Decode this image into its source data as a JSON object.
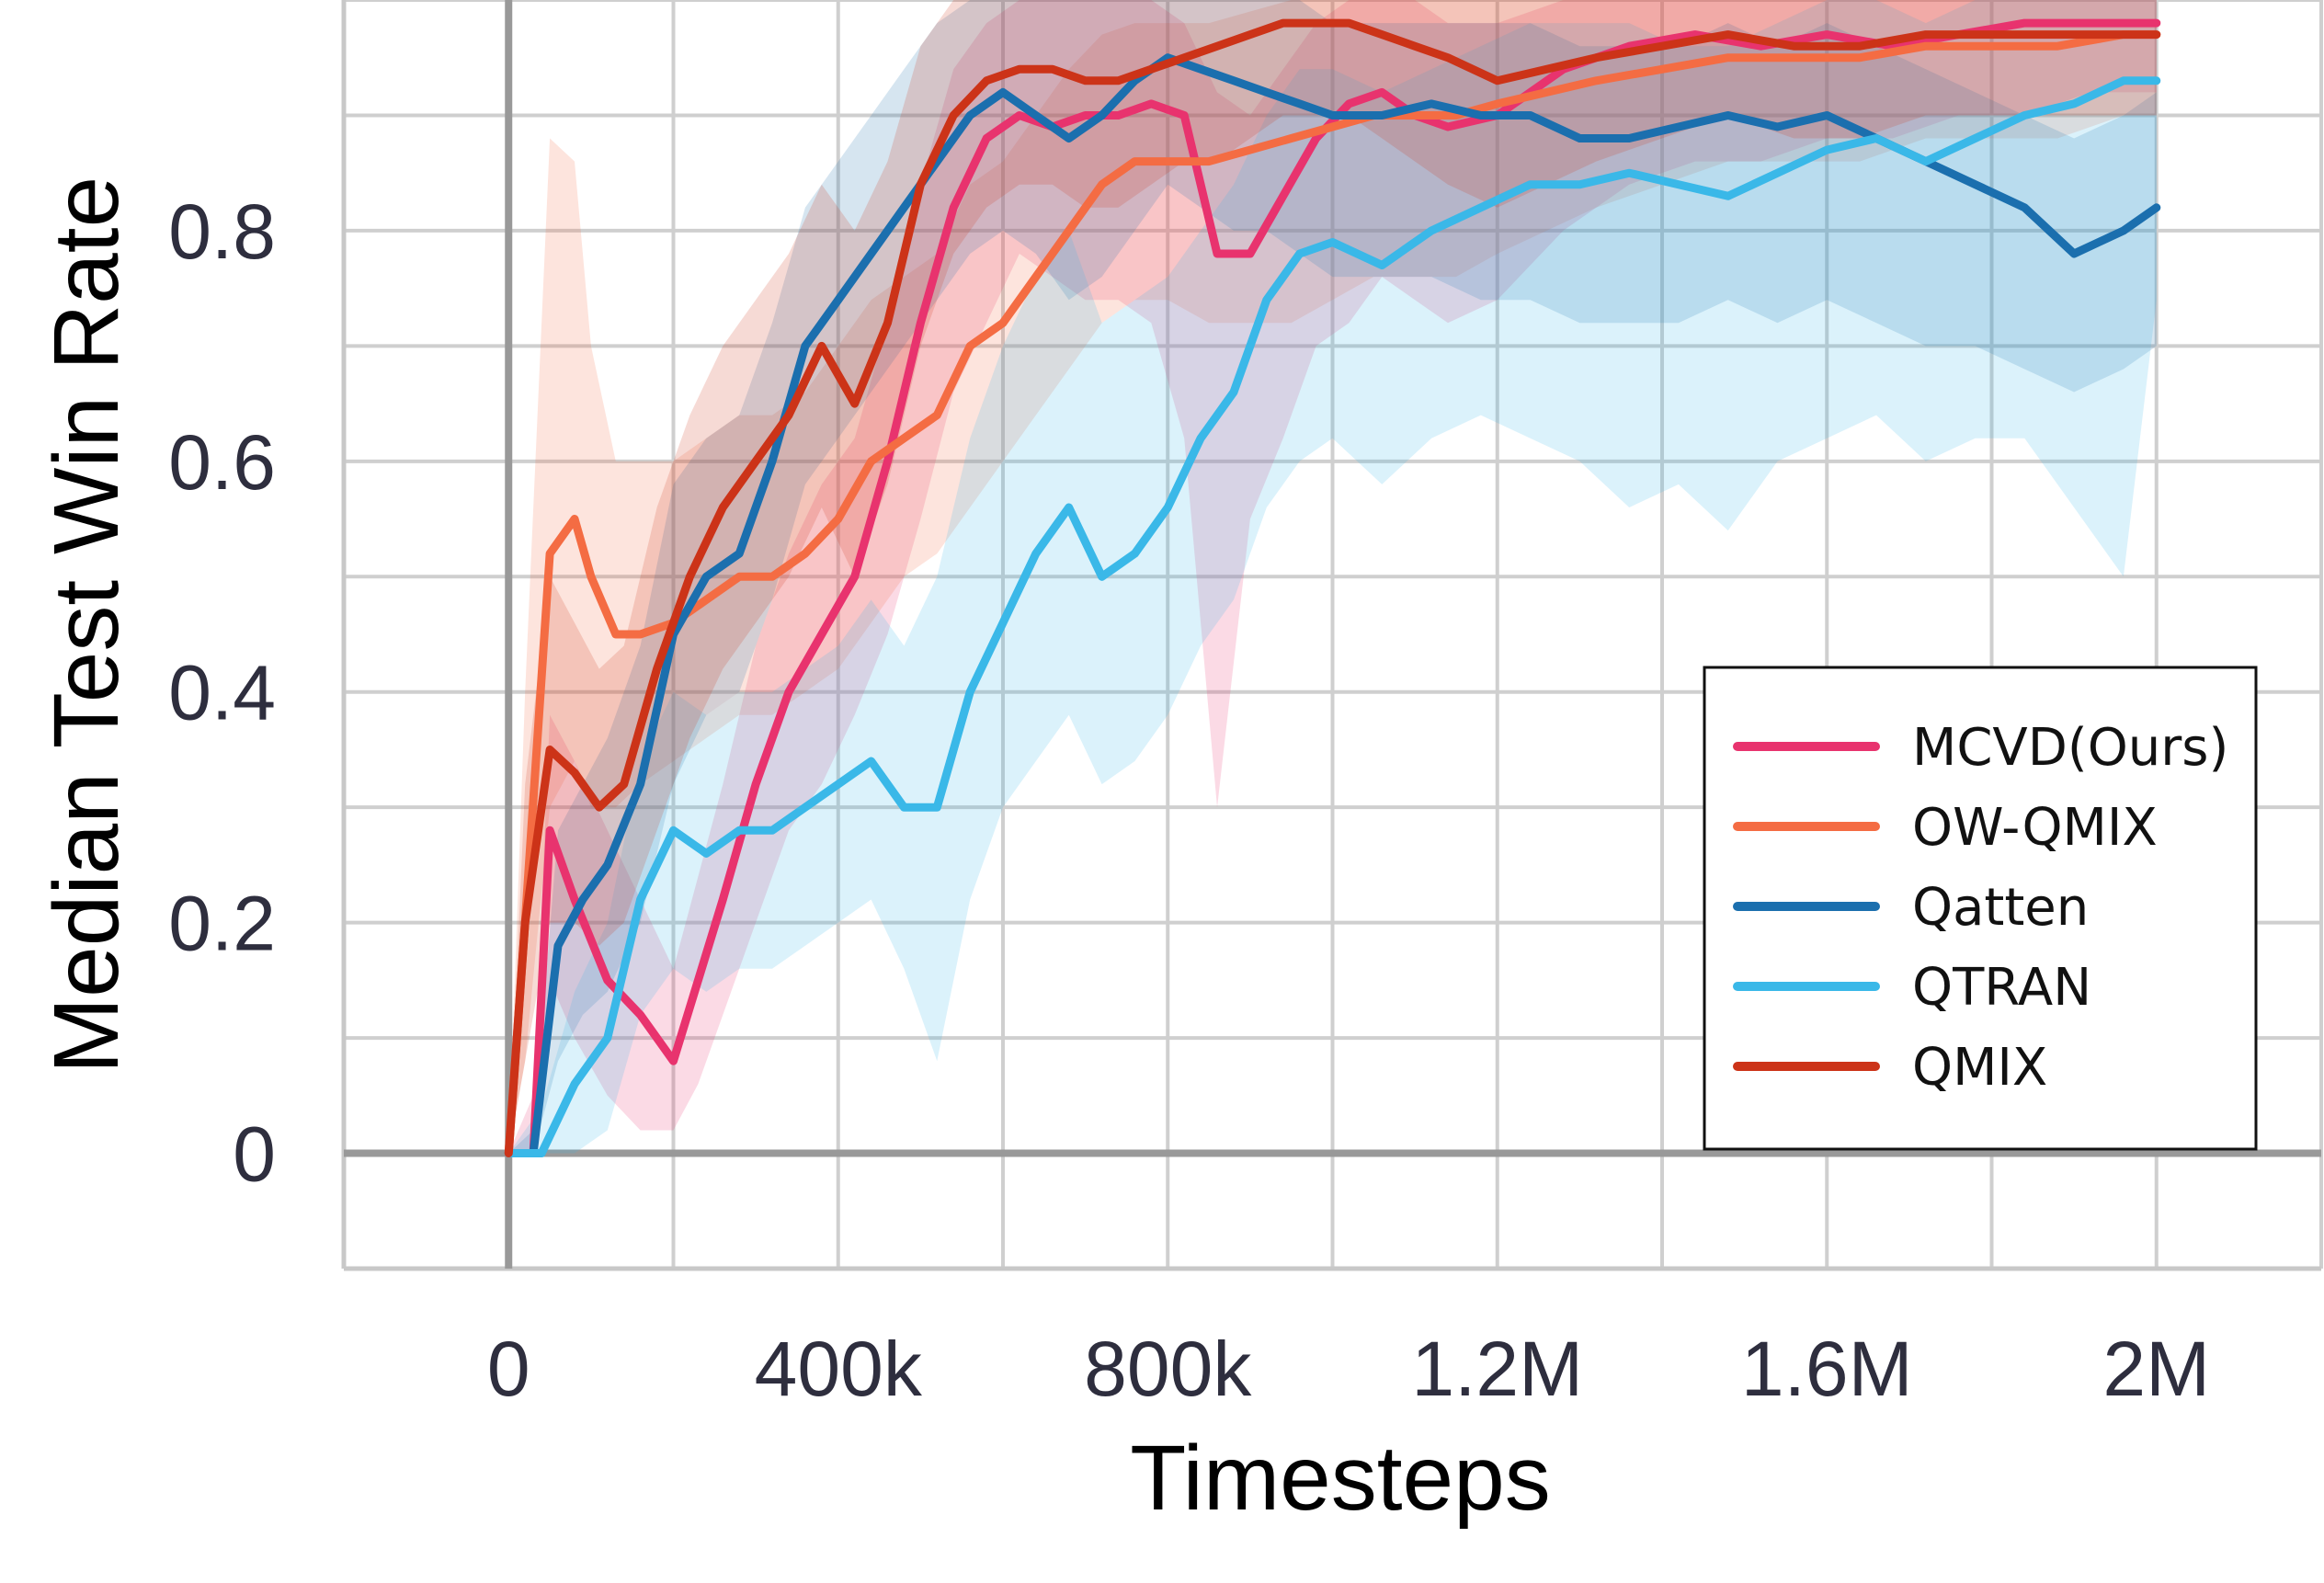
{
  "chart_data": {
    "type": "line",
    "xlabel": "Timesteps",
    "ylabel": "Median Test Win Rate",
    "xlim": [
      -200000,
      2200000
    ],
    "ylim": [
      -0.1,
      1.0
    ],
    "x_ticks": [
      0,
      400000,
      800000,
      1200000,
      1600000,
      2000000
    ],
    "x_tick_labels": [
      "0",
      "400k",
      "800k",
      "1.2M",
      "1.6M",
      "2M"
    ],
    "y_ticks": [
      0,
      0.2,
      0.4,
      0.6,
      0.8
    ],
    "y_tick_labels": [
      "0",
      "0.2",
      "0.4",
      "0.6",
      "0.8"
    ],
    "grid": true,
    "legend_position": "lower-right",
    "shaded_band": "min-max over runs",
    "series": [
      {
        "name": "MCVD(Ours)",
        "color": "#e8336e",
        "x": [
          0,
          30000,
          50000,
          80000,
          120000,
          160000,
          200000,
          230000,
          260000,
          300000,
          340000,
          380000,
          420000,
          460000,
          500000,
          540000,
          580000,
          620000,
          660000,
          700000,
          740000,
          780000,
          820000,
          860000,
          900000,
          940000,
          980000,
          1020000,
          1060000,
          1100000,
          1140000,
          1200000,
          1280000,
          1360000,
          1440000,
          1520000,
          1600000,
          1680000,
          1760000,
          1840000,
          1920000,
          2000000
        ],
        "y": [
          0,
          0.0,
          0.28,
          0.22,
          0.15,
          0.12,
          0.08,
          0.15,
          0.22,
          0.32,
          0.4,
          0.45,
          0.5,
          0.6,
          0.72,
          0.82,
          0.88,
          0.9,
          0.89,
          0.9,
          0.9,
          0.91,
          0.9,
          0.78,
          0.78,
          0.83,
          0.88,
          0.91,
          0.92,
          0.9,
          0.89,
          0.9,
          0.94,
          0.96,
          0.97,
          0.96,
          0.97,
          0.96,
          0.97,
          0.98,
          0.98,
          0.98
        ],
        "min": [
          0,
          0.0,
          0.15,
          0.1,
          0.05,
          0.02,
          0.02,
          0.06,
          0.12,
          0.2,
          0.28,
          0.32,
          0.38,
          0.45,
          0.55,
          0.66,
          0.72,
          0.78,
          0.76,
          0.74,
          0.74,
          0.72,
          0.62,
          0.3,
          0.55,
          0.62,
          0.7,
          0.72,
          0.76,
          0.74,
          0.72,
          0.74,
          0.8,
          0.84,
          0.86,
          0.86,
          0.88,
          0.88,
          0.9,
          0.9,
          0.92,
          0.92
        ],
        "max": [
          0,
          0.05,
          0.38,
          0.34,
          0.28,
          0.22,
          0.16,
          0.24,
          0.32,
          0.44,
          0.52,
          0.58,
          0.62,
          0.72,
          0.84,
          0.94,
          0.98,
          1.0,
          1.0,
          1.0,
          1.0,
          1.0,
          0.98,
          0.92,
          0.9,
          0.94,
          0.98,
          1.0,
          1.0,
          1.0,
          0.98,
          0.98,
          1.0,
          1.0,
          1.0,
          1.0,
          1.0,
          1.0,
          1.0,
          1.0,
          1.0,
          1.0
        ]
      },
      {
        "name": "OW-QMIX",
        "color": "#f46c43",
        "x": [
          0,
          20000,
          50000,
          80000,
          100000,
          130000,
          160000,
          200000,
          240000,
          280000,
          320000,
          360000,
          400000,
          440000,
          480000,
          520000,
          560000,
          600000,
          640000,
          680000,
          720000,
          760000,
          800000,
          850000,
          900000,
          950000,
          1000000,
          1050000,
          1100000,
          1150000,
          1200000,
          1260000,
          1320000,
          1400000,
          1480000,
          1560000,
          1640000,
          1720000,
          1800000,
          1880000,
          1960000,
          2000000
        ],
        "y": [
          0,
          0.2,
          0.52,
          0.55,
          0.5,
          0.45,
          0.45,
          0.46,
          0.48,
          0.5,
          0.5,
          0.52,
          0.55,
          0.6,
          0.62,
          0.64,
          0.7,
          0.72,
          0.76,
          0.8,
          0.84,
          0.86,
          0.86,
          0.86,
          0.87,
          0.88,
          0.89,
          0.9,
          0.9,
          0.9,
          0.91,
          0.92,
          0.93,
          0.94,
          0.95,
          0.95,
          0.95,
          0.96,
          0.96,
          0.96,
          0.97,
          0.97
        ],
        "min": [
          0,
          0.08,
          0.3,
          0.34,
          0.3,
          0.3,
          0.32,
          0.34,
          0.36,
          0.38,
          0.38,
          0.4,
          0.42,
          0.46,
          0.5,
          0.52,
          0.56,
          0.6,
          0.64,
          0.68,
          0.72,
          0.74,
          0.74,
          0.72,
          0.72,
          0.72,
          0.74,
          0.76,
          0.76,
          0.76,
          0.78,
          0.8,
          0.82,
          0.84,
          0.86,
          0.86,
          0.86,
          0.88,
          0.88,
          0.88,
          0.9,
          0.9
        ],
        "max": [
          0,
          0.4,
          0.88,
          0.86,
          0.7,
          0.6,
          0.6,
          0.6,
          0.62,
          0.64,
          0.64,
          0.66,
          0.7,
          0.74,
          0.76,
          0.78,
          0.84,
          0.86,
          0.9,
          0.94,
          0.97,
          0.98,
          0.98,
          0.98,
          0.99,
          1.0,
          1.0,
          1.0,
          1.0,
          1.0,
          1.0,
          1.0,
          1.0,
          1.0,
          1.0,
          1.0,
          1.0,
          1.0,
          1.0,
          1.0,
          1.0,
          1.0
        ]
      },
      {
        "name": "Qatten",
        "color": "#1b6fae",
        "x": [
          0,
          30000,
          60000,
          90000,
          120000,
          160000,
          200000,
          240000,
          280000,
          320000,
          360000,
          400000,
          440000,
          480000,
          520000,
          560000,
          600000,
          640000,
          680000,
          720000,
          760000,
          800000,
          840000,
          880000,
          920000,
          960000,
          1000000,
          1060000,
          1120000,
          1180000,
          1240000,
          1300000,
          1360000,
          1420000,
          1480000,
          1540000,
          1600000,
          1660000,
          1720000,
          1780000,
          1840000,
          1900000,
          1960000,
          2000000
        ],
        "y": [
          0,
          0.0,
          0.18,
          0.22,
          0.25,
          0.32,
          0.45,
          0.5,
          0.52,
          0.6,
          0.7,
          0.74,
          0.78,
          0.82,
          0.86,
          0.9,
          0.92,
          0.9,
          0.88,
          0.9,
          0.93,
          0.95,
          0.94,
          0.93,
          0.92,
          0.91,
          0.9,
          0.9,
          0.91,
          0.9,
          0.9,
          0.88,
          0.88,
          0.89,
          0.9,
          0.89,
          0.9,
          0.88,
          0.86,
          0.84,
          0.82,
          0.78,
          0.8,
          0.82
        ],
        "min": [
          0,
          0.0,
          0.08,
          0.12,
          0.14,
          0.2,
          0.32,
          0.38,
          0.4,
          0.48,
          0.58,
          0.62,
          0.66,
          0.7,
          0.74,
          0.78,
          0.8,
          0.78,
          0.74,
          0.76,
          0.8,
          0.84,
          0.82,
          0.8,
          0.8,
          0.78,
          0.76,
          0.76,
          0.76,
          0.74,
          0.74,
          0.72,
          0.72,
          0.72,
          0.74,
          0.72,
          0.74,
          0.72,
          0.7,
          0.7,
          0.68,
          0.66,
          0.68,
          0.7
        ],
        "max": [
          0,
          0.02,
          0.28,
          0.32,
          0.36,
          0.44,
          0.58,
          0.62,
          0.64,
          0.72,
          0.82,
          0.86,
          0.9,
          0.94,
          0.98,
          1.0,
          1.0,
          1.0,
          1.0,
          1.0,
          1.0,
          1.0,
          1.0,
          1.0,
          1.0,
          1.0,
          0.98,
          0.98,
          0.98,
          0.98,
          0.98,
          0.96,
          0.96,
          0.96,
          0.98,
          0.96,
          0.98,
          0.96,
          0.94,
          0.92,
          0.9,
          0.88,
          0.9,
          0.92
        ]
      },
      {
        "name": "QTRAN",
        "color": "#3ab8e8",
        "x": [
          0,
          40000,
          80000,
          120000,
          160000,
          200000,
          240000,
          280000,
          320000,
          360000,
          400000,
          440000,
          480000,
          520000,
          560000,
          600000,
          640000,
          680000,
          720000,
          760000,
          800000,
          840000,
          880000,
          920000,
          960000,
          1000000,
          1060000,
          1120000,
          1180000,
          1240000,
          1300000,
          1360000,
          1420000,
          1480000,
          1540000,
          1600000,
          1660000,
          1720000,
          1780000,
          1840000,
          1900000,
          1960000,
          2000000
        ],
        "y": [
          0,
          0.0,
          0.06,
          0.1,
          0.22,
          0.28,
          0.26,
          0.28,
          0.28,
          0.3,
          0.32,
          0.34,
          0.3,
          0.3,
          0.4,
          0.46,
          0.52,
          0.56,
          0.5,
          0.52,
          0.56,
          0.62,
          0.66,
          0.74,
          0.78,
          0.79,
          0.77,
          0.8,
          0.82,
          0.84,
          0.84,
          0.85,
          0.84,
          0.83,
          0.85,
          0.87,
          0.88,
          0.86,
          0.88,
          0.9,
          0.91,
          0.93,
          0.93
        ],
        "min": [
          0,
          0.0,
          0.0,
          0.02,
          0.12,
          0.16,
          0.14,
          0.16,
          0.16,
          0.18,
          0.2,
          0.22,
          0.16,
          0.08,
          0.22,
          0.3,
          0.34,
          0.38,
          0.32,
          0.34,
          0.38,
          0.44,
          0.48,
          0.56,
          0.6,
          0.62,
          0.58,
          0.62,
          0.64,
          0.62,
          0.6,
          0.56,
          0.58,
          0.54,
          0.6,
          0.62,
          0.64,
          0.6,
          0.62,
          0.62,
          0.56,
          0.5,
          0.74
        ],
        "max": [
          0,
          0.04,
          0.14,
          0.2,
          0.34,
          0.4,
          0.38,
          0.4,
          0.4,
          0.42,
          0.44,
          0.48,
          0.44,
          0.5,
          0.62,
          0.7,
          0.76,
          0.8,
          0.72,
          0.74,
          0.76,
          0.8,
          0.84,
          0.9,
          0.94,
          0.94,
          0.92,
          0.94,
          0.96,
          0.98,
          0.98,
          0.98,
          0.96,
          0.96,
          0.98,
          1.0,
          1.0,
          0.98,
          1.0,
          1.0,
          1.0,
          1.0,
          1.0
        ]
      },
      {
        "name": "QMIX",
        "color": "#cc3318",
        "x": [
          0,
          20000,
          50000,
          80000,
          110000,
          140000,
          180000,
          220000,
          260000,
          300000,
          340000,
          380000,
          420000,
          460000,
          500000,
          540000,
          580000,
          620000,
          660000,
          700000,
          740000,
          780000,
          820000,
          860000,
          900000,
          940000,
          980000,
          1020000,
          1060000,
          1100000,
          1140000,
          1200000,
          1260000,
          1320000,
          1400000,
          1480000,
          1560000,
          1640000,
          1720000,
          1800000,
          1880000,
          1960000,
          2000000
        ],
        "y": [
          0,
          0.2,
          0.35,
          0.33,
          0.3,
          0.32,
          0.42,
          0.5,
          0.56,
          0.6,
          0.64,
          0.7,
          0.65,
          0.72,
          0.84,
          0.9,
          0.93,
          0.94,
          0.94,
          0.93,
          0.93,
          0.94,
          0.95,
          0.96,
          0.97,
          0.98,
          0.98,
          0.98,
          0.97,
          0.96,
          0.95,
          0.93,
          0.94,
          0.95,
          0.96,
          0.97,
          0.96,
          0.96,
          0.97,
          0.97,
          0.97,
          0.97,
          0.97
        ],
        "min": [
          0,
          0.08,
          0.2,
          0.2,
          0.18,
          0.2,
          0.28,
          0.36,
          0.42,
          0.46,
          0.5,
          0.56,
          0.5,
          0.58,
          0.7,
          0.78,
          0.82,
          0.84,
          0.84,
          0.82,
          0.82,
          0.84,
          0.86,
          0.86,
          0.88,
          0.9,
          0.9,
          0.9,
          0.88,
          0.86,
          0.84,
          0.82,
          0.84,
          0.86,
          0.88,
          0.9,
          0.88,
          0.88,
          0.9,
          0.9,
          0.9,
          0.9,
          0.9
        ],
        "max": [
          0,
          0.32,
          0.5,
          0.46,
          0.42,
          0.44,
          0.56,
          0.64,
          0.7,
          0.74,
          0.78,
          0.84,
          0.8,
          0.86,
          0.96,
          1.0,
          1.0,
          1.0,
          1.0,
          1.0,
          1.0,
          1.0,
          1.0,
          1.0,
          1.0,
          1.0,
          1.0,
          1.0,
          1.0,
          1.0,
          1.0,
          1.0,
          1.0,
          1.0,
          1.0,
          1.0,
          1.0,
          1.0,
          1.0,
          1.0,
          1.0,
          1.0,
          1.0
        ]
      }
    ]
  }
}
